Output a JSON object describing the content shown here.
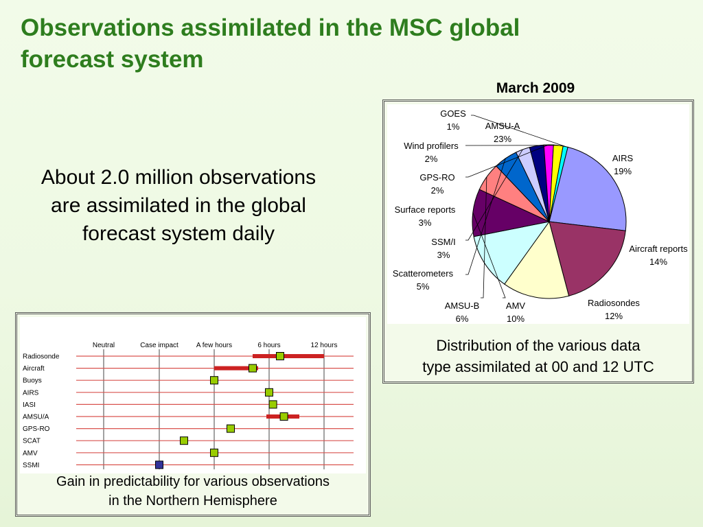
{
  "slide": {
    "title_line1": "Observations assimilated in the MSC global",
    "title_line2": "forecast system",
    "claim_line1": "About 2.0 million observations",
    "claim_line2": "are assimilated in the global",
    "claim_line3": "forecast system daily",
    "pie_caption_line1": "Distribution of the various data",
    "pie_caption_line2": "type assimilated at 00 and 12 UTC",
    "gain_caption_line1": "Gain in predictability for various observations",
    "gain_caption_line2": "in the Northern Hemisphere"
  },
  "chart_data": [
    {
      "type": "pie",
      "title": "March 2009",
      "slices": [
        {
          "label": "AMSU-A",
          "value": 23,
          "value_label": "23%",
          "color": "#9999ff"
        },
        {
          "label": "AIRS",
          "value": 19,
          "value_label": "19%",
          "color": "#993366"
        },
        {
          "label": "Aircraft reports",
          "value": 14,
          "value_label": "14%",
          "color": "#ffffcc"
        },
        {
          "label": "Radiosondes",
          "value": 12,
          "value_label": "12%",
          "color": "#ccffff"
        },
        {
          "label": "AMV",
          "value": 10,
          "value_label": "10%",
          "color": "#660066"
        },
        {
          "label": "AMSU-B",
          "value": 6,
          "value_label": "6%",
          "color": "#ff8080"
        },
        {
          "label": "Scatterometers",
          "value": 5,
          "value_label": "5%",
          "color": "#0066cc"
        },
        {
          "label": "SSM/I",
          "value": 3,
          "value_label": "3%",
          "color": "#ccccff"
        },
        {
          "label": "Surface reports",
          "value": 3,
          "value_label": "3%",
          "color": "#000080"
        },
        {
          "label": "GPS-RO",
          "value": 2,
          "value_label": "2%",
          "color": "#ff00ff"
        },
        {
          "label": "Wind profilers",
          "value": 2,
          "value_label": "2%",
          "color": "#ffff00"
        },
        {
          "label": "GOES",
          "value": 1,
          "value_label": "1%",
          "color": "#00ffff"
        }
      ]
    },
    {
      "type": "scatter",
      "x_categories": [
        "Neutral",
        "Case impact",
        "A few hours",
        "6 hours",
        "12 hours"
      ],
      "rows": [
        {
          "label": "Radiosonde",
          "marker": 3.2,
          "range": [
            2.7,
            4.0
          ],
          "marker_color": "#99cc00"
        },
        {
          "label": "Aircraft",
          "marker": 2.7,
          "range": [
            2.0,
            2.8
          ],
          "marker_color": "#99cc00"
        },
        {
          "label": "Buoys",
          "marker": 2.0,
          "range": null,
          "marker_color": "#99cc00"
        },
        {
          "label": "AIRS",
          "marker": 3.0,
          "range": null,
          "marker_color": "#99cc00"
        },
        {
          "label": "IASI",
          "marker": 3.07,
          "range": null,
          "marker_color": "#99cc00"
        },
        {
          "label": "AMSU/A",
          "marker": 3.27,
          "range": [
            2.95,
            3.55
          ],
          "marker_color": "#99cc00"
        },
        {
          "label": "GPS-RO",
          "marker": 2.3,
          "range": null,
          "marker_color": "#99cc00"
        },
        {
          "label": "SCAT",
          "marker": 1.45,
          "range": null,
          "marker_color": "#99cc00"
        },
        {
          "label": "AMV",
          "marker": 2.0,
          "range": null,
          "marker_color": "#99cc00"
        },
        {
          "label": "SSMI",
          "marker": 1.0,
          "range": null,
          "marker_color": "#333399"
        }
      ]
    }
  ]
}
